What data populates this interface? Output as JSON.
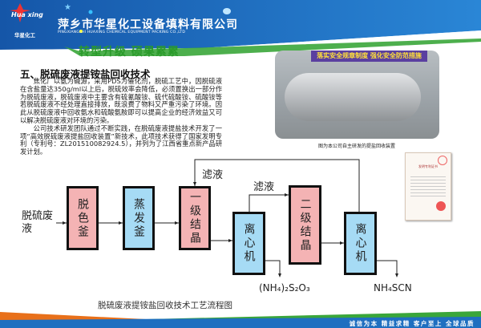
{
  "header": {
    "logo_script": "Hua xing",
    "logo_cn": "华星化工",
    "company_cn": "萍乡市华星化工设备填料有限公司",
    "company_en": "PINGXIANGSHI HUAXING CHEMICAL EQUIPMENT PACKING CO.,LTD",
    "slogan": "转型升级  硕果累累"
  },
  "article": {
    "title": "五、脱硫废液提铵盐回收技术",
    "paragraphs": [
      "焦化厂以氨为碱源，采用PDS为催化剂，脱硫工艺中，因脱硫液在含盐量达350g/ml以上后，脱硫效率会降低，必须置换出一部分作为脱硫废液，脱硫废液中主要含有硫氰酸铵、硫代硫酸铵、硫酸铵等若脱硫废液不经处理直接排放，既浪费了物料又严重污染了环境。因此从脱硫废液中回收氨水和硫酸氨胺即可以提高企业的经济效益又可以解决脱硫废液对环境的污染。",
      "公司技术研发团队通过不断实践，在脱硫废液提盐技术开发了一项“高效脱硫废液提盐回收装置”新技术，此项技术获得了国家发明专利（专利号：ZL201510082924.5），并列为了江西省重点新产品研发计划。"
    ]
  },
  "photo": {
    "banner": "落实安全规章制度  强化安全防范措施",
    "caption": "图为本公司自主研发的提盐回收装置"
  },
  "certificate": {
    "title": "发明专利证书"
  },
  "flow": {
    "input": "脱硫废液",
    "boxes": [
      "脱色釜",
      "蒸发釜",
      "一级结晶",
      "离心机",
      "二级结晶",
      "离心机"
    ],
    "filtrate1": "滤液",
    "filtrate2": "滤液",
    "output1": "(NH₄)₂S₂O₃",
    "output2": "NH₄SCN",
    "caption": "脱硫废液提铵盐回收技术工艺流程图"
  },
  "footer": {
    "motto": "诚信为本  精益求精  客户至上  全球品质"
  },
  "colors": {
    "blue": "#1f6fc0",
    "green": "#3aa63a",
    "orange": "#e8701a",
    "pink": "#f4b3b4",
    "light_blue": "#a6dbf5"
  }
}
